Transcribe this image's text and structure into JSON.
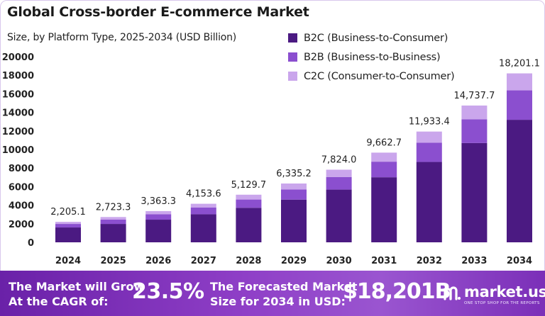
{
  "header": {
    "title": "Global Cross-border E-commerce Market",
    "subtitle": "Size, by Platform Type, 2025-2034 (USD Billion)"
  },
  "chart_data": {
    "type": "bar",
    "stacked": true,
    "categories": [
      "2024",
      "2025",
      "2026",
      "2027",
      "2028",
      "2029",
      "2030",
      "2031",
      "2032",
      "2033",
      "2034"
    ],
    "series": [
      {
        "name": "B2C (Business-to-Consumer)",
        "color": "#4b1a82",
        "values": [
          1600,
          1980,
          2440,
          3020,
          3720,
          4600,
          5680,
          7010,
          8660,
          10700,
          13200
        ]
      },
      {
        "name": "B2B (Business-to-Business)",
        "color": "#8b4fcf",
        "values": [
          380,
          470,
          580,
          720,
          890,
          1100,
          1360,
          1680,
          2080,
          2560,
          3170
        ]
      },
      {
        "name": "C2C (Consumer-to-Consumer)",
        "color": "#caa6ec",
        "values": [
          225.1,
          273.3,
          343.3,
          413.6,
          519.7,
          635.2,
          784.0,
          972.7,
          1193.4,
          1477.7,
          1831.1
        ]
      }
    ],
    "totals": [
      "2,205.1",
      "2,723.3",
      "3,363.3",
      "4,153.6",
      "5,129.7",
      "6,335.2",
      "7,824.0",
      "9,662.7",
      "11,933.4",
      "14,737.7",
      "18,201.1"
    ],
    "total_values": [
      2205.1,
      2723.3,
      3363.3,
      4153.6,
      5129.7,
      6335.2,
      7824.0,
      9662.7,
      11933.4,
      14737.7,
      18201.1
    ],
    "ylim": [
      0,
      20000
    ],
    "yticks": [
      "0",
      "2000",
      "4000",
      "6000",
      "8000",
      "10000",
      "12000",
      "14000",
      "16000",
      "18000",
      "20000"
    ],
    "grid": false,
    "legend_position": "top-right"
  },
  "footer": {
    "cagr_label": [
      "The Market will Grow",
      "At the CAGR of:"
    ],
    "cagr_value": "23.5%",
    "forecast_label": [
      "The Forecasted Market",
      "Size for 2034 in USD:"
    ],
    "forecast_value": "$18,201B",
    "brand_name": "market.us",
    "brand_tagline": "ONE STOP SHOP FOR THE REPORTS"
  }
}
